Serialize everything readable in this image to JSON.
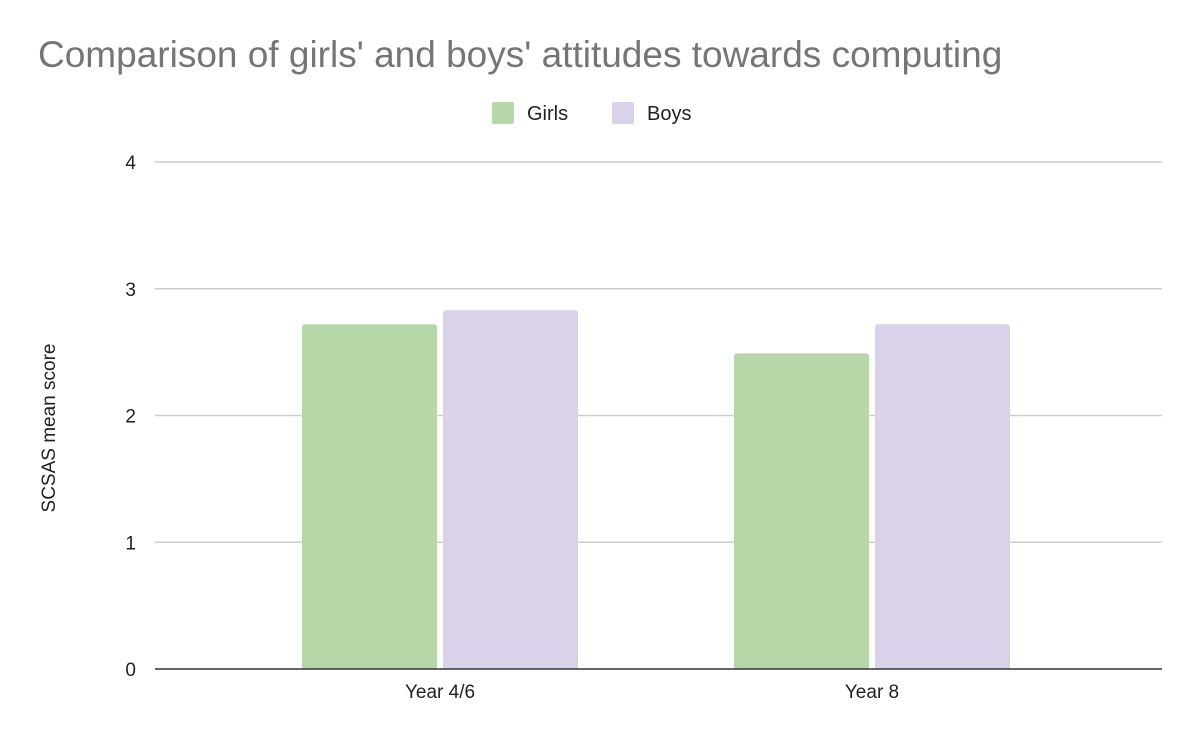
{
  "chart_data": {
    "type": "bar",
    "title": "Comparison of girls' and boys' attitudes towards computing",
    "xlabel": "",
    "ylabel": "SCSAS mean score",
    "categories": [
      "Year 4/6",
      "Year 8"
    ],
    "series": [
      {
        "name": "Girls",
        "values": [
          2.72,
          2.49
        ],
        "color": "#b6d7a8"
      },
      {
        "name": "Boys",
        "values": [
          2.83,
          2.72
        ],
        "color": "#d9d2e9"
      }
    ],
    "ylim": [
      0,
      4
    ],
    "yticks": [
      "0",
      "1",
      "2",
      "3",
      "4"
    ],
    "grid": true,
    "legend": "top"
  }
}
